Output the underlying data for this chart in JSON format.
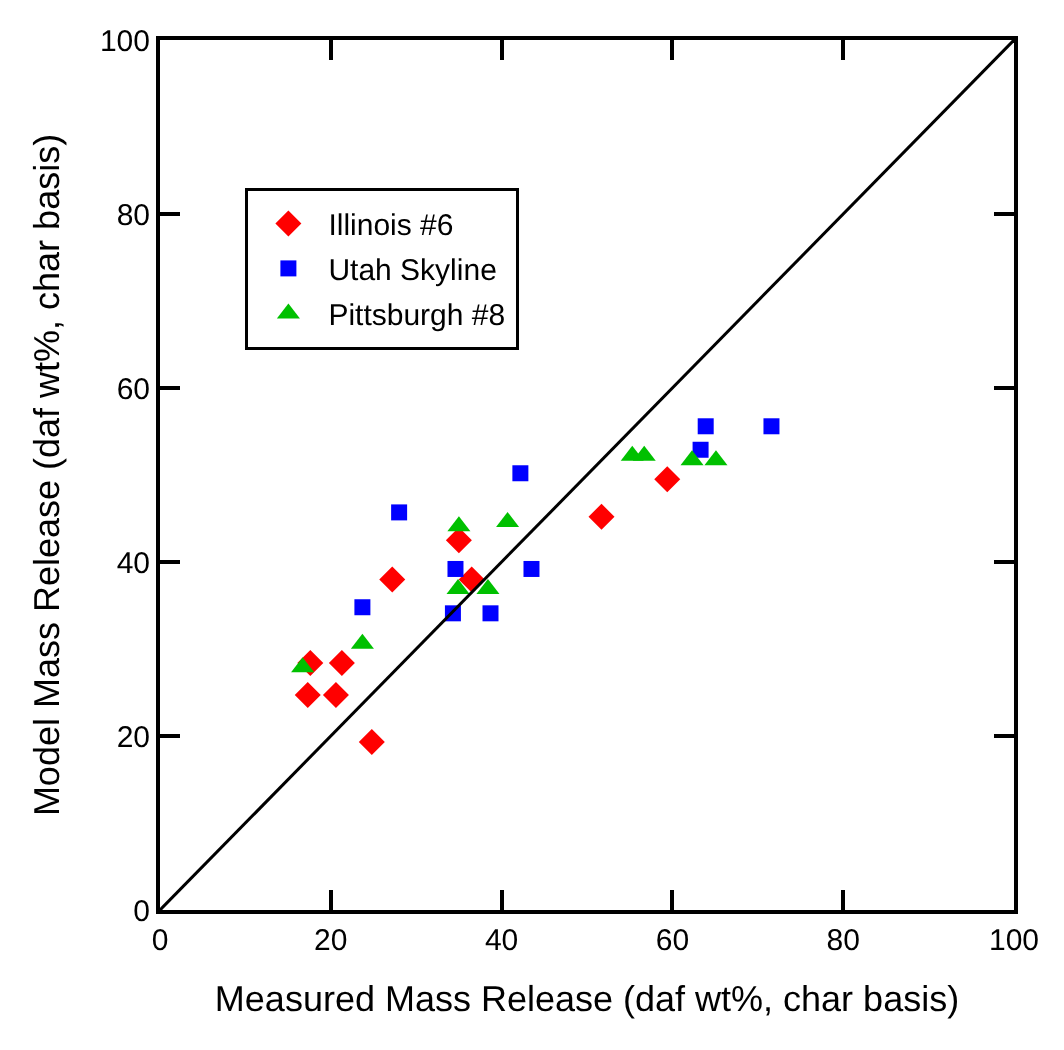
{
  "chart_data": {
    "type": "scatter",
    "xlabel": "Measured Mass Release (daf wt%, char basis)",
    "ylabel": "Model Mass Release (daf wt%, char basis)",
    "xlim": [
      0,
      100
    ],
    "ylim": [
      0,
      100
    ],
    "xticks": [
      0,
      20,
      40,
      60,
      80,
      100
    ],
    "yticks": [
      0,
      20,
      40,
      60,
      80,
      100
    ],
    "legend": "top left",
    "series": [
      {
        "name": "Illinois #6",
        "color": "#ff0000",
        "marker": "diamond",
        "x": [
          17.6,
          17.3,
          21.3,
          20.6,
          24.8,
          27.2,
          35.0,
          36.5,
          51.7,
          59.4
        ],
        "values": [
          28.4,
          24.7,
          28.4,
          24.7,
          19.3,
          38.0,
          42.5,
          38.0,
          45.2,
          49.5
        ]
      },
      {
        "name": "Utah Skyline",
        "color": "#0000ff",
        "marker": "square",
        "x": [
          23.7,
          28.0,
          34.6,
          34.3,
          38.7,
          42.2,
          43.5,
          63.3,
          63.9,
          71.6
        ],
        "values": [
          34.8,
          45.7,
          39.2,
          34.1,
          34.1,
          50.2,
          39.2,
          52.9,
          55.6,
          55.6
        ]
      },
      {
        "name": "Pittsburgh #8",
        "color": "#00c000",
        "marker": "triangle",
        "x": [
          16.7,
          23.7,
          35.0,
          34.9,
          38.4,
          40.7,
          55.3,
          56.7,
          62.3,
          65.1
        ],
        "values": [
          27.9,
          30.6,
          44.1,
          36.9,
          36.9,
          44.6,
          52.2,
          52.2,
          51.7,
          51.7
        ]
      },
      {
        "type": "line",
        "color": "#000000",
        "line_style": "solid",
        "x": [
          0,
          100
        ],
        "values": [
          0,
          100
        ]
      }
    ]
  }
}
